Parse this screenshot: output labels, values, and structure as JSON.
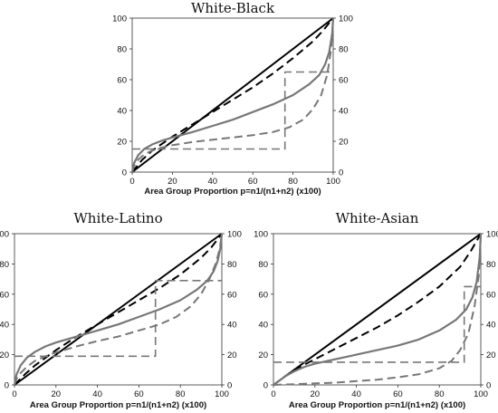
{
  "chart_data": [
    {
      "type": "line",
      "title": "White-Black",
      "xlabel": "Area Group Proportion p=n1/(n1+n2) (x100)",
      "xlim": [
        0,
        100
      ],
      "ylim": [
        0,
        100
      ],
      "xticks": [
        "0",
        "20",
        "40",
        "60",
        "80",
        "100"
      ],
      "yticks": [
        "0",
        "20",
        "40",
        "60",
        "80",
        "100"
      ],
      "y2ticks": [
        "0",
        "20",
        "40",
        "60",
        "80",
        "100"
      ],
      "series": [
        {
          "style": "solid-black",
          "color": "#000000",
          "x": [
            0,
            100
          ],
          "y": [
            0,
            100
          ]
        },
        {
          "style": "dashed-black",
          "color": "#000000",
          "x": [
            0,
            5,
            10,
            20,
            30,
            40,
            50,
            60,
            70,
            80,
            90,
            95,
            100
          ],
          "y": [
            0,
            8,
            14,
            23,
            31,
            39,
            47,
            55,
            64,
            74,
            85,
            92,
            100
          ]
        },
        {
          "style": "solid-gray",
          "color": "#777777",
          "x": [
            0,
            1,
            3,
            6,
            10,
            15,
            20,
            30,
            40,
            50,
            60,
            70,
            80,
            88,
            93,
            96,
            98,
            99.5,
            100
          ],
          "y": [
            0,
            6,
            11,
            15,
            18,
            20.5,
            22.5,
            26,
            30,
            34,
            39,
            44,
            50,
            57,
            63,
            70,
            78,
            90,
            100
          ]
        },
        {
          "style": "dashed-gray",
          "color": "#777777",
          "x": [
            0,
            1,
            3,
            6,
            10,
            15,
            20,
            25,
            30,
            40,
            50,
            60,
            70,
            78,
            85,
            90,
            94,
            97,
            99,
            100
          ],
          "y": [
            0,
            4,
            8,
            11.5,
            14,
            16,
            17.5,
            18.5,
            19.5,
            21,
            22.5,
            24,
            26,
            29,
            34,
            41,
            50,
            63,
            80,
            100
          ]
        },
        {
          "style": "step-gray",
          "color": "#777777",
          "x": [
            0,
            76,
            76,
            100
          ],
          "y": [
            15,
            15,
            65,
            65
          ]
        }
      ]
    },
    {
      "type": "line",
      "title": "White-Latino",
      "xlabel": "Area Group Proportion p=n1/(n1+n2) (x100)",
      "xlim": [
        0,
        100
      ],
      "ylim": [
        0,
        100
      ],
      "xticks": [
        "0",
        "20",
        "40",
        "60",
        "80",
        "100"
      ],
      "yticks": [
        "0",
        "20",
        "40",
        "60",
        "80",
        "100"
      ],
      "y2ticks": [
        "0",
        "20",
        "40",
        "60",
        "80",
        "100"
      ],
      "series": [
        {
          "style": "solid-black",
          "color": "#000000",
          "x": [
            0,
            100
          ],
          "y": [
            0,
            100
          ]
        },
        {
          "style": "dashed-black",
          "color": "#000000",
          "x": [
            0,
            5,
            10,
            20,
            30,
            40,
            50,
            60,
            70,
            80,
            90,
            95,
            100
          ],
          "y": [
            0,
            7,
            13,
            23,
            32,
            40,
            48,
            56,
            64,
            73,
            84,
            91,
            100
          ]
        },
        {
          "style": "solid-gray",
          "color": "#777777",
          "x": [
            0,
            1,
            3,
            6,
            10,
            15,
            20,
            30,
            40,
            50,
            60,
            70,
            80,
            88,
            93,
            96,
            98,
            99.5,
            100
          ],
          "y": [
            0,
            7,
            13,
            18,
            22,
            25.5,
            28,
            32,
            36,
            40,
            45,
            50,
            56,
            63,
            69,
            75,
            82,
            92,
            100
          ]
        },
        {
          "style": "dashed-gray",
          "color": "#777777",
          "x": [
            0,
            1,
            3,
            6,
            10,
            15,
            20,
            25,
            30,
            40,
            50,
            60,
            70,
            78,
            85,
            90,
            94,
            97,
            99,
            100
          ],
          "y": [
            0,
            4,
            8,
            12,
            16,
            19,
            21.5,
            23.5,
            25.5,
            29,
            32,
            36,
            40,
            45,
            52,
            60,
            70,
            80,
            90,
            100
          ]
        },
        {
          "style": "step-gray",
          "color": "#777777",
          "x": [
            0,
            68,
            68,
            100
          ],
          "y": [
            19,
            19,
            69,
            69
          ]
        }
      ]
    },
    {
      "type": "line",
      "title": "White-Asian",
      "xlabel": "Area Group Proportion p=n1/(n1+n2) (x100)",
      "xlim": [
        0,
        100
      ],
      "ylim": [
        0,
        100
      ],
      "xticks": [
        "0",
        "20",
        "40",
        "60",
        "80",
        "100"
      ],
      "yticks": [
        "0",
        "20",
        "40",
        "60",
        "80",
        "100"
      ],
      "y2ticks": [
        "0",
        "20",
        "40",
        "60",
        "80",
        "100"
      ],
      "series": [
        {
          "style": "solid-black",
          "color": "#000000",
          "x": [
            0,
            100
          ],
          "y": [
            0,
            100
          ]
        },
        {
          "style": "dashed-black",
          "color": "#000000",
          "x": [
            0,
            5,
            10,
            20,
            30,
            40,
            50,
            60,
            70,
            80,
            90,
            95,
            100
          ],
          "y": [
            0,
            5,
            10,
            17,
            24,
            31,
            38,
            46,
            55,
            65,
            78,
            88,
            100
          ]
        },
        {
          "style": "solid-gray",
          "color": "#777777",
          "x": [
            0,
            3,
            6,
            10,
            15,
            20,
            30,
            40,
            50,
            60,
            70,
            80,
            88,
            93,
            96,
            98,
            99.5,
            100
          ],
          "y": [
            0,
            3,
            6,
            9,
            12,
            14,
            17,
            20,
            23,
            26,
            30,
            36,
            43,
            50,
            58,
            68,
            85,
            100
          ]
        },
        {
          "style": "dashed-gray",
          "color": "#777777",
          "x": [
            0,
            10,
            20,
            30,
            40,
            50,
            60,
            70,
            80,
            86,
            90,
            94,
            97,
            99,
            100
          ],
          "y": [
            0,
            0.5,
            1,
            1.5,
            2.5,
            3.5,
            5,
            7,
            11,
            16,
            23,
            34,
            52,
            72,
            100
          ]
        },
        {
          "style": "step-gray",
          "color": "#777777",
          "x": [
            0,
            92,
            92,
            100
          ],
          "y": [
            15,
            15,
            65,
            65
          ]
        }
      ]
    }
  ]
}
